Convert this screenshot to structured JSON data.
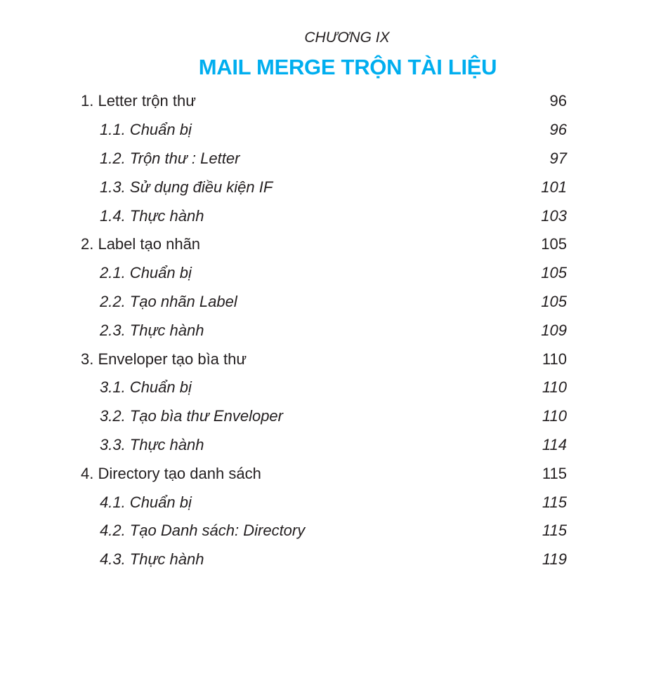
{
  "header": {
    "chapter": "CHƯƠNG IX",
    "title": "MAIL MERGE TRỘN TÀI LIỆU",
    "title_color": "#00aeef"
  },
  "toc": [
    {
      "label": "1. Letter trộn thư",
      "page": "96",
      "level": 1
    },
    {
      "label": "1.1. Chuẩn bị",
      "page": "96",
      "level": 2
    },
    {
      "label": "1.2. Trộn thư : Letter",
      "page": "97",
      "level": 2
    },
    {
      "label": "1.3. Sử dụng điều kiện IF",
      "page": "101",
      "level": 2
    },
    {
      "label": "1.4. Thực hành",
      "page": "103",
      "level": 2
    },
    {
      "label": "2. Label tạo nhãn",
      "page": "105",
      "level": 1
    },
    {
      "label": "2.1. Chuẩn bị",
      "page": "105",
      "level": 2
    },
    {
      "label": "2.2. Tạo nhãn Label",
      "page": "105",
      "level": 2
    },
    {
      "label": "2.3. Thực hành",
      "page": "109",
      "level": 2
    },
    {
      "label": "3. Enveloper tạo bìa thư",
      "page": "110",
      "level": 1
    },
    {
      "label": "3.1. Chuẩn bị",
      "page": "110",
      "level": 2
    },
    {
      "label": "3.2. Tạo bìa thư Enveloper",
      "page": "110",
      "level": 2
    },
    {
      "label": "3.3. Thực hành",
      "page": "114",
      "level": 2
    },
    {
      "label": "4. Directory tạo danh sách",
      "page": "115",
      "level": 1
    },
    {
      "label": "4.1. Chuẩn bị",
      "page": "115",
      "level": 2
    },
    {
      "label": "4.2. Tạo Danh sách: Directory",
      "page": "115",
      "level": 2
    },
    {
      "label": "4.3. Thực hành",
      "page": "119",
      "level": 2
    }
  ]
}
